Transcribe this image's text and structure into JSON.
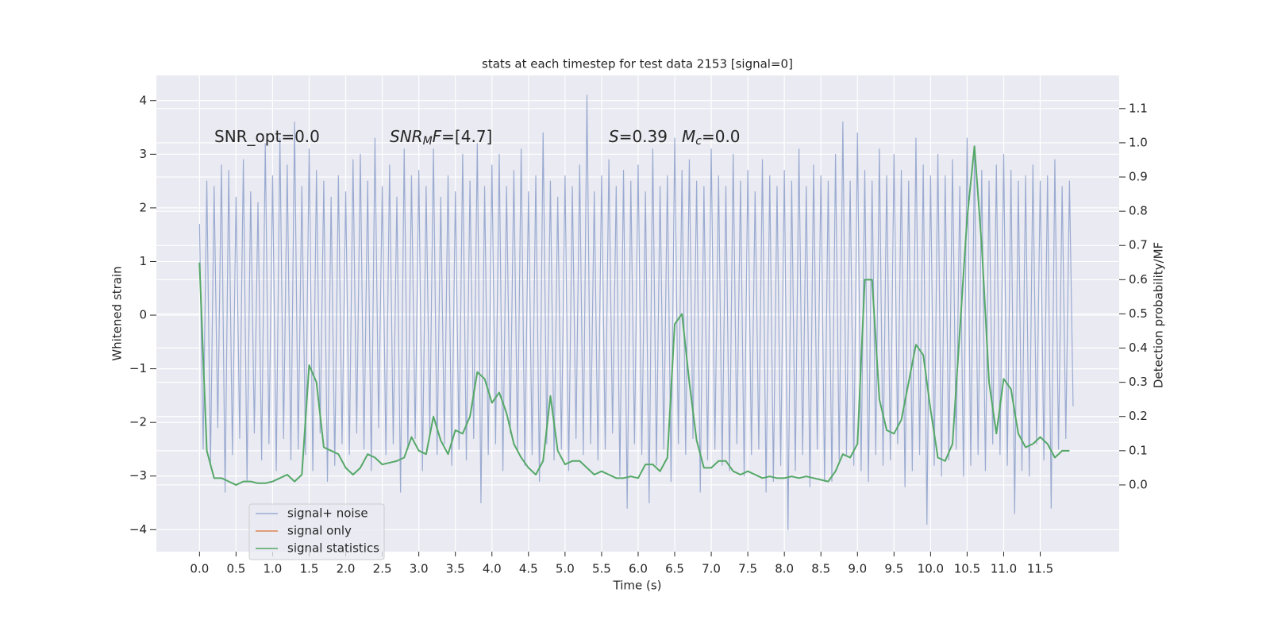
{
  "chart_data": {
    "type": "line",
    "title": "stats at each timestep for test data 2153 [signal=0]",
    "x_label": "Time (s)",
    "y_label": "Whitened strain",
    "y2_label": "Detection probability/MF",
    "annotations": [
      [
        {
          "text": "SNR_opt=0.0",
          "style": "normal"
        }
      ],
      [
        {
          "text": "SNR",
          "style": "italic"
        },
        {
          "text": "M",
          "style": "italic-sub"
        },
        {
          "text": "F",
          "style": "italic"
        },
        {
          "text": "=[4.7]",
          "style": "normal"
        }
      ],
      [
        {
          "text": "S",
          "style": "italic"
        },
        {
          "text": "=0.39",
          "style": "normal"
        }
      ],
      [
        {
          "text": "M",
          "style": "italic"
        },
        {
          "text": "c",
          "style": "italic-sub"
        },
        {
          "text": "=0.0",
          "style": "normal"
        }
      ]
    ],
    "xlim": [
      -0.59,
      12.58
    ],
    "ylim": [
      -4.41,
      4.47
    ],
    "y2lim": [
      -0.195,
      1.197
    ],
    "xticks": [
      {
        "value": 0,
        "label": "0.0"
      },
      0.5,
      {
        "value": 1,
        "label": "1.0"
      },
      1.5,
      {
        "value": 2,
        "label": "2.0"
      },
      2.5,
      {
        "value": 3,
        "label": "3.0"
      },
      3.5,
      {
        "value": 4,
        "label": "4.0"
      },
      4.5,
      {
        "value": 5,
        "label": "5.0"
      },
      5.5,
      {
        "value": 6,
        "label": "6.0"
      },
      6.5,
      {
        "value": 7,
        "label": "7.0"
      },
      7.5,
      {
        "value": 8,
        "label": "8.0"
      },
      8.5,
      {
        "value": 9,
        "label": "9.0"
      },
      9.5,
      {
        "value": 10,
        "label": "10.0"
      },
      10.5,
      {
        "value": 11,
        "label": "11.0"
      },
      11.5
    ],
    "yticks": [
      {
        "value": -4,
        "label": "−4"
      },
      {
        "value": -3,
        "label": "−3"
      },
      {
        "value": -2,
        "label": "−2"
      },
      {
        "value": -1,
        "label": "−1"
      },
      0,
      1,
      2,
      3,
      4
    ],
    "y2ticks": [
      {
        "value": 0,
        "label": "0.0"
      },
      0.1,
      0.2,
      0.3,
      0.4,
      0.5,
      0.6,
      0.7,
      0.8,
      0.9,
      {
        "value": 1,
        "label": "1.0"
      },
      1.1
    ],
    "grid": true,
    "legend": "lower left",
    "series": [
      {
        "name": "signal+ noise",
        "color": "#9aabd1",
        "axis": "y",
        "x": [
          0,
          0.05,
          0.1,
          0.15,
          0.2,
          0.25,
          0.3,
          0.35,
          0.4,
          0.45,
          0.5,
          0.55,
          0.6,
          0.65,
          0.7,
          0.75,
          0.8,
          0.85,
          0.9,
          0.95,
          1,
          1.05,
          1.1,
          1.15,
          1.2,
          1.25,
          1.3,
          1.35,
          1.4,
          1.45,
          1.5,
          1.55,
          1.6,
          1.65,
          1.7,
          1.75,
          1.8,
          1.85,
          1.9,
          1.95,
          2,
          2.05,
          2.1,
          2.15,
          2.2,
          2.25,
          2.3,
          2.35,
          2.4,
          2.45,
          2.5,
          2.55,
          2.6,
          2.65,
          2.7,
          2.75,
          2.8,
          2.85,
          2.9,
          2.95,
          3,
          3.05,
          3.1,
          3.15,
          3.2,
          3.25,
          3.3,
          3.35,
          3.4,
          3.45,
          3.5,
          3.55,
          3.6,
          3.65,
          3.7,
          3.75,
          3.8,
          3.85,
          3.9,
          3.95,
          4,
          4.05,
          4.1,
          4.15,
          4.2,
          4.25,
          4.3,
          4.35,
          4.4,
          4.45,
          4.5,
          4.55,
          4.6,
          4.65,
          4.7,
          4.75,
          4.8,
          4.85,
          4.9,
          4.95,
          5,
          5.05,
          5.1,
          5.15,
          5.2,
          5.25,
          5.3,
          5.35,
          5.4,
          5.45,
          5.5,
          5.55,
          5.6,
          5.65,
          5.7,
          5.75,
          5.8,
          5.85,
          5.9,
          5.95,
          6,
          6.05,
          6.1,
          6.15,
          6.2,
          6.25,
          6.3,
          6.35,
          6.4,
          6.45,
          6.5,
          6.55,
          6.6,
          6.65,
          6.7,
          6.75,
          6.8,
          6.85,
          6.9,
          6.95,
          7,
          7.05,
          7.1,
          7.15,
          7.2,
          7.25,
          7.3,
          7.35,
          7.4,
          7.45,
          7.5,
          7.55,
          7.6,
          7.65,
          7.7,
          7.75,
          7.8,
          7.85,
          7.9,
          7.95,
          8,
          8.05,
          8.1,
          8.15,
          8.2,
          8.25,
          8.3,
          8.35,
          8.4,
          8.45,
          8.5,
          8.55,
          8.6,
          8.65,
          8.7,
          8.75,
          8.8,
          8.85,
          8.9,
          8.95,
          9,
          9.05,
          9.1,
          9.15,
          9.2,
          9.25,
          9.3,
          9.35,
          9.4,
          9.45,
          9.5,
          9.55,
          9.6,
          9.65,
          9.7,
          9.75,
          9.8,
          9.85,
          9.9,
          9.95,
          10,
          10.05,
          10.1,
          10.15,
          10.2,
          10.25,
          10.3,
          10.35,
          10.4,
          10.45,
          10.5,
          10.55,
          10.6,
          10.65,
          10.7,
          10.75,
          10.8,
          10.85,
          10.9,
          10.95,
          11,
          11.05,
          11.1,
          11.15,
          11.2,
          11.25,
          11.3,
          11.35,
          11.4,
          11.45,
          11.5,
          11.55,
          11.6,
          11.65,
          11.7,
          11.75,
          11.8,
          11.85,
          11.9,
          11.95
        ],
        "values": [
          1.7,
          -2.5,
          2.5,
          -2.8,
          2.4,
          -2.1,
          2.8,
          -3.3,
          2.7,
          -2.6,
          2.2,
          -2.3,
          2.9,
          -3.1,
          2.3,
          -2.2,
          2.1,
          -2.7,
          3.2,
          -2.4,
          2.6,
          -2.9,
          3.3,
          -2.3,
          2.8,
          -2.7,
          3.6,
          -2.5,
          2.4,
          -2.6,
          3.1,
          -2.9,
          2.7,
          -2.2,
          2.5,
          -3.1,
          2.2,
          -2.8,
          2.6,
          -2.4,
          2.3,
          -2.6,
          2.9,
          -2.2,
          3.0,
          -2.5,
          2.5,
          -2.9,
          3.3,
          -2.1,
          2.4,
          -2.6,
          2.8,
          -2.4,
          2.2,
          -3.3,
          3.1,
          -2.5,
          2.6,
          -2.3,
          2.7,
          -2.9,
          2.4,
          -2.2,
          3.1,
          -2.6,
          2.2,
          -2.4,
          2.6,
          -2.8,
          2.3,
          -2.5,
          3.0,
          -2.7,
          2.5,
          -2.3,
          3.2,
          -3.5,
          2.4,
          -2.6,
          2.8,
          -2.4,
          3.0,
          -2.9,
          2.4,
          -2.2,
          2.7,
          -2.5,
          3.1,
          -2.8,
          2.3,
          -2.6,
          2.6,
          -3.1,
          3.4,
          -2.4,
          2.5,
          -2.7,
          2.2,
          -2.5,
          2.6,
          -2.9,
          2.4,
          -2.3,
          2.8,
          -2.6,
          4.1,
          -2.4,
          2.3,
          -2.7,
          2.6,
          -2.5,
          2.9,
          -2.2,
          2.4,
          -3.0,
          2.7,
          -3.6,
          2.5,
          -2.4,
          2.8,
          -2.6,
          2.3,
          -3.5,
          3.1,
          -2.8,
          2.4,
          -2.5,
          2.6,
          -3.1,
          3.3,
          -2.4,
          2.7,
          -2.6,
          2.9,
          -2.3,
          2.5,
          -3.3,
          2.4,
          -2.7,
          3.1,
          -2.5,
          2.6,
          -2.8,
          2.4,
          -2.9,
          3.0,
          -2.4,
          2.5,
          -3.0,
          2.7,
          -2.6,
          2.3,
          -2.5,
          2.9,
          -3.3,
          2.6,
          -3.1,
          2.4,
          -2.8,
          2.7,
          -4.0,
          2.5,
          -2.9,
          3.1,
          -2.6,
          2.4,
          -3.2,
          2.8,
          -2.5,
          2.6,
          -3.1,
          2.5,
          -3.1,
          3.0,
          -2.7,
          3.6,
          -2.6,
          2.5,
          -2.8,
          3.4,
          -2.9,
          2.7,
          -3.1,
          2.5,
          -2.6,
          3.1,
          -2.8,
          2.6,
          -2.7,
          3.0,
          -2.4,
          2.7,
          -3.2,
          2.5,
          -2.9,
          3.3,
          -2.6,
          2.8,
          -3.9,
          2.6,
          -2.8,
          3.0,
          -3.0,
          2.6,
          -2.7,
          2.9,
          -2.5,
          2.4,
          -3.0,
          3.3,
          -2.8,
          3.0,
          -2.6,
          2.7,
          -2.9,
          2.5,
          -2.4,
          2.8,
          -2.6,
          3.0,
          -2.8,
          2.7,
          -3.7,
          2.5,
          -2.9,
          2.6,
          -3.0,
          2.8,
          -2.4,
          2.5,
          -2.7,
          2.6,
          -3.6,
          2.9,
          -2.5,
          2.4,
          -2.3,
          2.5,
          -1.7
        ]
      },
      {
        "name": "signal only",
        "color": "#dd8452",
        "axis": "y"
      },
      {
        "name": "signal statistics",
        "color": "#55a868",
        "axis": "y2",
        "x": [
          0,
          0.1,
          0.2,
          0.3,
          0.4,
          0.5,
          0.6,
          0.7,
          0.8,
          0.9,
          1,
          1.1,
          1.2,
          1.3,
          1.4,
          1.5,
          1.6,
          1.7,
          1.8,
          1.9,
          2,
          2.1,
          2.2,
          2.3,
          2.4,
          2.5,
          2.6,
          2.7,
          2.8,
          2.9,
          3,
          3.1,
          3.2,
          3.3,
          3.4,
          3.5,
          3.6,
          3.7,
          3.8,
          3.9,
          4,
          4.1,
          4.2,
          4.3,
          4.4,
          4.5,
          4.6,
          4.7,
          4.8,
          4.9,
          5,
          5.1,
          5.2,
          5.3,
          5.4,
          5.5,
          5.6,
          5.7,
          5.8,
          5.9,
          6,
          6.1,
          6.2,
          6.3,
          6.4,
          6.5,
          6.6,
          6.7,
          6.8,
          6.9,
          7,
          7.1,
          7.2,
          7.3,
          7.4,
          7.5,
          7.6,
          7.7,
          7.8,
          7.9,
          8,
          8.1,
          8.2,
          8.3,
          8.4,
          8.5,
          8.6,
          8.7,
          8.8,
          8.9,
          9,
          9.1,
          9.2,
          9.3,
          9.4,
          9.5,
          9.6,
          9.7,
          9.8,
          9.9,
          10,
          10.1,
          10.2,
          10.3,
          10.4,
          10.5,
          10.6,
          10.7,
          10.8,
          10.9,
          11,
          11.1,
          11.2,
          11.3,
          11.4,
          11.5,
          11.6,
          11.7,
          11.8,
          11.9
        ],
        "values": [
          0.65,
          0.1,
          0.02,
          0.02,
          0.01,
          0,
          0.01,
          0.01,
          0.005,
          0.005,
          0.01,
          0.02,
          0.03,
          0.01,
          0.03,
          0.35,
          0.3,
          0.11,
          0.1,
          0.09,
          0.05,
          0.03,
          0.05,
          0.09,
          0.08,
          0.06,
          0.065,
          0.07,
          0.08,
          0.14,
          0.1,
          0.09,
          0.2,
          0.13,
          0.09,
          0.16,
          0.15,
          0.2,
          0.33,
          0.31,
          0.24,
          0.27,
          0.21,
          0.12,
          0.08,
          0.05,
          0.03,
          0.07,
          0.26,
          0.1,
          0.06,
          0.07,
          0.07,
          0.05,
          0.03,
          0.04,
          0.03,
          0.02,
          0.02,
          0.025,
          0.02,
          0.06,
          0.06,
          0.04,
          0.08,
          0.47,
          0.5,
          0.3,
          0.13,
          0.05,
          0.05,
          0.07,
          0.07,
          0.04,
          0.03,
          0.04,
          0.03,
          0.02,
          0.025,
          0.02,
          0.02,
          0.025,
          0.02,
          0.025,
          0.02,
          0.015,
          0.01,
          0.04,
          0.09,
          0.08,
          0.12,
          0.6,
          0.6,
          0.25,
          0.16,
          0.15,
          0.19,
          0.3,
          0.41,
          0.38,
          0.22,
          0.08,
          0.07,
          0.12,
          0.45,
          0.78,
          0.99,
          0.7,
          0.3,
          0.15,
          0.31,
          0.28,
          0.15,
          0.11,
          0.12,
          0.14,
          0.12,
          0.08,
          0.1,
          0.1
        ]
      }
    ]
  }
}
